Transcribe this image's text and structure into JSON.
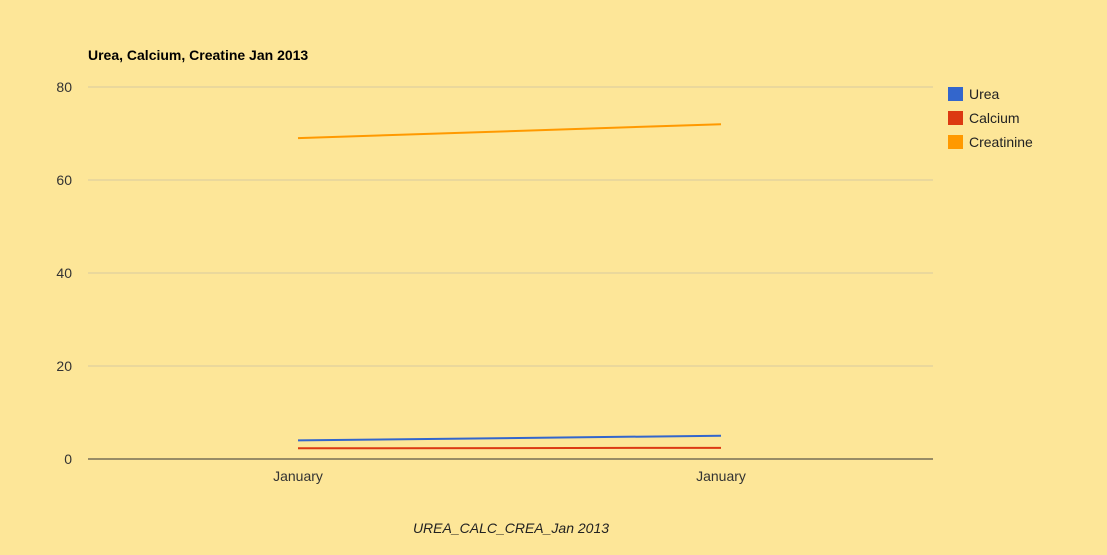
{
  "chart_data": {
    "type": "line",
    "title": "Urea, Calcium, Creatine Jan 2013",
    "categories": [
      "January",
      "January"
    ],
    "series": [
      {
        "name": "Urea",
        "color": "#3366cc",
        "values": [
          4,
          5
        ]
      },
      {
        "name": "Calcium",
        "color": "#dc3912",
        "values": [
          2.3,
          2.4
        ]
      },
      {
        "name": "Creatinine",
        "color": "#ff9900",
        "values": [
          69,
          72
        ]
      }
    ],
    "ylim": [
      0,
      80
    ],
    "yticks": [
      0,
      20,
      40,
      60,
      80
    ],
    "grid": true,
    "legend": "right",
    "caption": "UREA_CALC_CREA_Jan 2013"
  }
}
